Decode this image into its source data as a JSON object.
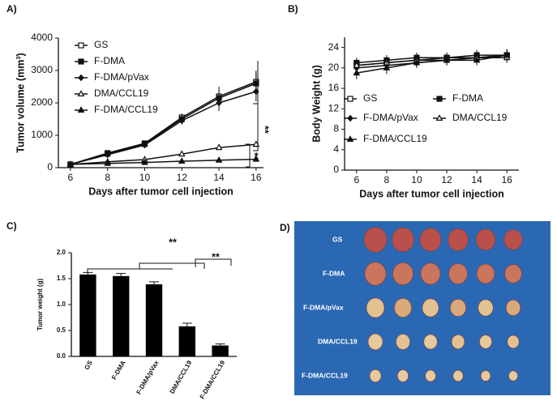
{
  "chart_data": [
    {
      "type": "line",
      "panel": "A)",
      "xlabel": "Days after tumor cell injection",
      "ylabel": "Tumor volume (mm³)",
      "x": [
        6,
        8,
        10,
        12,
        14,
        16
      ],
      "xlim": [
        5.35,
        16.4
      ],
      "xticks": [
        6,
        8,
        10,
        12,
        14,
        16
      ],
      "ylim": [
        0,
        4000
      ],
      "yticks": [
        0,
        1000,
        2000,
        3000,
        4000
      ],
      "series": [
        {
          "name": "GS",
          "marker": "square-open",
          "color": "#111111",
          "values": [
            100,
            450,
            750,
            1550,
            2200,
            2650
          ],
          "errors": [
            20,
            40,
            60,
            120,
            300,
            350
          ]
        },
        {
          "name": "F-DMA",
          "marker": "square",
          "color": "#111111",
          "values": [
            100,
            430,
            730,
            1500,
            2150,
            2600
          ],
          "errors": [
            20,
            40,
            60,
            120,
            250,
            330
          ]
        },
        {
          "name": "F-DMA/pVax",
          "marker": "diamond",
          "color": "#111111",
          "values": [
            100,
            400,
            700,
            1450,
            2000,
            2350
          ],
          "errors": [
            20,
            40,
            60,
            120,
            250,
            300
          ]
        },
        {
          "name": "DMA/CCL19",
          "marker": "triangle-open",
          "color": "#111111",
          "values": [
            100,
            180,
            250,
            420,
            620,
            720
          ],
          "errors": [
            10,
            20,
            30,
            40,
            60,
            80
          ]
        },
        {
          "name": "F-DMA/CCL19",
          "marker": "triangle",
          "color": "#111111",
          "values": [
            100,
            130,
            160,
            200,
            230,
            260
          ],
          "errors": [
            10,
            15,
            20,
            20,
            25,
            30
          ]
        }
      ],
      "annotations": [
        "**",
        "**"
      ]
    },
    {
      "type": "line",
      "panel": "B)",
      "xlabel": "Days after tumor cell injection",
      "ylabel": "Body Weight (g)",
      "x": [
        6,
        8,
        10,
        12,
        14,
        16
      ],
      "xlim": [
        5.2,
        16.8
      ],
      "xticks": [
        6,
        8,
        10,
        12,
        14,
        16
      ],
      "ylim": [
        0,
        26
      ],
      "yticks": [
        0,
        4,
        8,
        12,
        16,
        20,
        24
      ],
      "series": [
        {
          "name": "GS",
          "marker": "square-open",
          "color": "#111111",
          "values": [
            20.5,
            21,
            21.5,
            22,
            22,
            22.5
          ],
          "errors": [
            1,
            1,
            1,
            1,
            1,
            1
          ]
        },
        {
          "name": "F-DMA",
          "marker": "square",
          "color": "#111111",
          "values": [
            21,
            21.5,
            22,
            22,
            22.5,
            22.5
          ],
          "errors": [
            1,
            1,
            1,
            1,
            1,
            1.2
          ]
        },
        {
          "name": "F-DMA/pVax",
          "marker": "diamond",
          "color": "#111111",
          "values": [
            20,
            20.5,
            21,
            21.5,
            22,
            22.5
          ],
          "errors": [
            1,
            1,
            1,
            1,
            1,
            1
          ]
        },
        {
          "name": "DMA/CCL19",
          "marker": "triangle-open",
          "color": "#111111",
          "values": [
            20.5,
            21,
            21.5,
            21.5,
            22,
            22
          ],
          "errors": [
            1,
            1,
            1,
            1,
            1,
            1
          ]
        },
        {
          "name": "F-DMA/CCL19",
          "marker": "triangle",
          "color": "#111111",
          "values": [
            19,
            20,
            21,
            21.5,
            21.5,
            22.5
          ],
          "errors": [
            1.2,
            1.2,
            1,
            1,
            1,
            1
          ]
        }
      ]
    },
    {
      "type": "bar",
      "panel": "C)",
      "ylabel": "Tumor weight (g)",
      "categories": [
        "GS",
        "F-DMA",
        "F-DMA/pVax",
        "DMA/CCL19",
        "F-DMA/CCL19"
      ],
      "values": [
        1.58,
        1.55,
        1.39,
        0.58,
        0.21
      ],
      "errors": [
        0.04,
        0.05,
        0.05,
        0.06,
        0.03
      ],
      "color": "#000000",
      "ylim": [
        0,
        2.0
      ],
      "yticks": [
        {
          "value": 0,
          "label": "0.0"
        },
        0.5,
        {
          "value": 1,
          "label": "1.0"
        },
        1.5,
        {
          "value": 2,
          "label": "2.0"
        }
      ],
      "annotations": [
        "**",
        "**"
      ]
    }
  ],
  "photo": {
    "panel": "D)",
    "row_labels": [
      "GS",
      "F-DMA",
      "F-DMA/pVax",
      "DMA/CCL19",
      "F-DMA/CCL19"
    ]
  }
}
